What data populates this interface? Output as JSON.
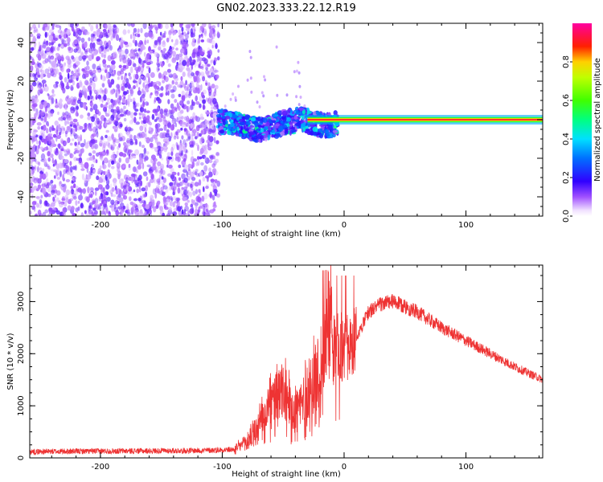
{
  "title": "GN02.2023.333.22.12.R19",
  "chart_data": [
    {
      "type": "heatmap",
      "xlabel": "Height of straight line (km)",
      "ylabel": "Frequency (Hz)",
      "xlim": [
        -258,
        163
      ],
      "ylim": [
        -50,
        50
      ],
      "x_ticks": [
        -200,
        -100,
        0,
        100
      ],
      "y_ticks": [
        -40,
        -20,
        0,
        20,
        40
      ],
      "colorbar": {
        "label": "Normalized spectral amplitude",
        "range": [
          0.0,
          1.0
        ],
        "ticks": [
          0.0,
          0.2,
          0.4,
          0.6,
          0.8
        ],
        "colormap": "rainbow (white-purple-blue-cyan-green-yellow-red-magenta)"
      },
      "regions": [
        {
          "x": [
            -258,
            -103
          ],
          "freq": [
            -50,
            50
          ],
          "amplitude": [
            0.0,
            0.15
          ]
        },
        {
          "x": [
            -103,
            -5
          ],
          "freq": [
            -10,
            5
          ],
          "amplitude": [
            0.1,
            0.45
          ]
        },
        {
          "x": [
            -30,
            163
          ],
          "freq": [
            -0.5,
            0.5
          ],
          "amplitude": [
            0.9,
            0.95
          ]
        }
      ]
    },
    {
      "type": "line",
      "xlabel": "Height of straight line (km)",
      "ylabel": "SNR (10 * v/v)",
      "xlim": [
        -258,
        163
      ],
      "ylim": [
        0,
        3700
      ],
      "x_ticks": [
        -200,
        -100,
        0,
        100
      ],
      "y_ticks": [
        0,
        1000,
        2000,
        3000
      ],
      "color": "#ee3333",
      "x": [
        -258,
        -200,
        -120,
        -90,
        -80,
        -70,
        -60,
        -50,
        -40,
        -35,
        -25,
        -18,
        -12,
        -8,
        0,
        10,
        20,
        30,
        40,
        60,
        80,
        100,
        120,
        140,
        163
      ],
      "y": [
        120,
        130,
        140,
        160,
        300,
        600,
        1000,
        1200,
        900,
        1000,
        1400,
        1700,
        2500,
        2100,
        2100,
        2300,
        2800,
        2950,
        3000,
        2800,
        2500,
        2250,
        2000,
        1750,
        1500
      ]
    }
  ]
}
